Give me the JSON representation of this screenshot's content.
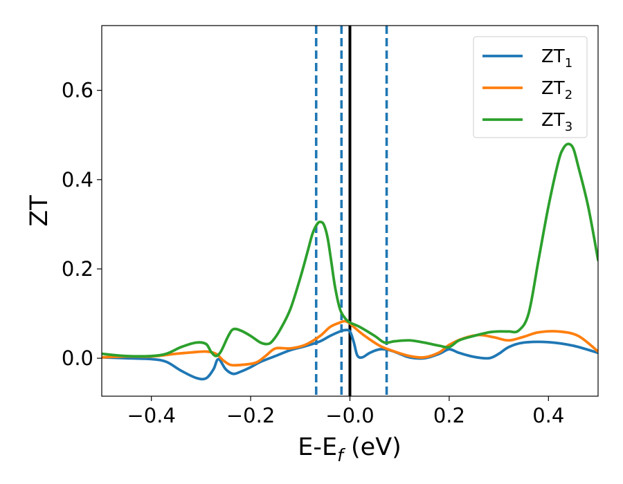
{
  "chart_data": {
    "type": "line",
    "xlabel": {
      "main": "E-E",
      "sub": "f",
      "unit": " (eV)"
    },
    "ylabel": "ZT",
    "xlim": [
      -0.5,
      0.5
    ],
    "ylim": [
      -0.085,
      0.745
    ],
    "xticks": [
      -0.4,
      -0.2,
      0.0,
      0.2,
      0.4
    ],
    "xtick_labels": [
      "−0.4",
      "−0.2",
      "−0.0",
      "0.2",
      "0.4"
    ],
    "yticks": [
      0.0,
      0.2,
      0.4,
      0.6
    ],
    "ytick_labels": [
      "0.0",
      "0.2",
      "0.4",
      "0.6"
    ],
    "grid": false,
    "legend_position": "top-right",
    "vertical_lines": [
      {
        "x": -0.068,
        "style": "dashed",
        "color": "#1f77b4"
      },
      {
        "x": -0.017,
        "style": "dashed",
        "color": "#1f77b4"
      },
      {
        "x": 0.0,
        "style": "solid",
        "color": "#000000"
      },
      {
        "x": 0.074,
        "style": "dashed",
        "color": "#1f77b4"
      }
    ],
    "series": [
      {
        "name": "ZT",
        "subscript": "1",
        "color": "#1f77b4",
        "x": [
          -0.5,
          -0.45,
          -0.4,
          -0.37,
          -0.34,
          -0.31,
          -0.29,
          -0.275,
          -0.265,
          -0.25,
          -0.235,
          -0.22,
          -0.2,
          -0.18,
          -0.15,
          -0.12,
          -0.09,
          -0.06,
          -0.04,
          -0.02,
          -0.01,
          0.0,
          0.008,
          0.015,
          0.025,
          0.04,
          0.06,
          0.08,
          0.1,
          0.12,
          0.15,
          0.18,
          0.2,
          0.22,
          0.25,
          0.28,
          0.3,
          0.32,
          0.35,
          0.4,
          0.45,
          0.5
        ],
        "y": [
          0.002,
          0.0,
          -0.002,
          -0.008,
          -0.028,
          -0.044,
          -0.045,
          -0.025,
          -0.002,
          -0.025,
          -0.035,
          -0.03,
          -0.02,
          -0.008,
          0.005,
          0.018,
          0.027,
          0.038,
          0.05,
          0.06,
          0.063,
          0.06,
          0.035,
          0.006,
          0.002,
          0.012,
          0.02,
          0.018,
          0.01,
          0.002,
          0.0,
          0.01,
          0.02,
          0.012,
          0.003,
          0.0,
          0.01,
          0.025,
          0.035,
          0.036,
          0.028,
          0.012
        ]
      },
      {
        "name": "ZT",
        "subscript": "2",
        "color": "#ff7f0e",
        "x": [
          -0.5,
          -0.45,
          -0.4,
          -0.35,
          -0.32,
          -0.29,
          -0.27,
          -0.255,
          -0.24,
          -0.22,
          -0.19,
          -0.17,
          -0.15,
          -0.12,
          -0.09,
          -0.06,
          -0.04,
          -0.02,
          -0.01,
          0.0,
          0.01,
          0.03,
          0.06,
          0.09,
          0.12,
          0.15,
          0.18,
          0.2,
          0.23,
          0.26,
          0.29,
          0.32,
          0.35,
          0.38,
          0.42,
          0.46,
          0.5
        ],
        "y": [
          0.002,
          0.004,
          0.004,
          0.01,
          0.013,
          0.015,
          0.01,
          -0.005,
          -0.015,
          -0.015,
          -0.01,
          0.005,
          0.022,
          0.022,
          0.03,
          0.05,
          0.07,
          0.08,
          0.083,
          0.078,
          0.068,
          0.05,
          0.028,
          0.015,
          0.005,
          0.002,
          0.013,
          0.03,
          0.045,
          0.052,
          0.047,
          0.04,
          0.048,
          0.058,
          0.06,
          0.05,
          0.015
        ]
      },
      {
        "name": "ZT",
        "subscript": "3",
        "color": "#2ca02c",
        "x": [
          -0.5,
          -0.45,
          -0.4,
          -0.37,
          -0.34,
          -0.31,
          -0.29,
          -0.28,
          -0.27,
          -0.26,
          -0.245,
          -0.235,
          -0.22,
          -0.2,
          -0.18,
          -0.165,
          -0.155,
          -0.14,
          -0.12,
          -0.1,
          -0.085,
          -0.075,
          -0.065,
          -0.058,
          -0.052,
          -0.045,
          -0.038,
          -0.03,
          -0.02,
          -0.01,
          0.0,
          0.02,
          0.05,
          0.07,
          0.09,
          0.12,
          0.15,
          0.18,
          0.2,
          0.22,
          0.25,
          0.28,
          0.3,
          0.32,
          0.34,
          0.36,
          0.38,
          0.4,
          0.42,
          0.43,
          0.44,
          0.45,
          0.46,
          0.48,
          0.5
        ],
        "y": [
          0.01,
          0.005,
          0.005,
          0.01,
          0.025,
          0.035,
          0.032,
          0.015,
          0.005,
          0.015,
          0.05,
          0.065,
          0.062,
          0.05,
          0.035,
          0.032,
          0.04,
          0.065,
          0.11,
          0.18,
          0.24,
          0.28,
          0.302,
          0.305,
          0.298,
          0.27,
          0.22,
          0.16,
          0.11,
          0.09,
          0.08,
          0.07,
          0.05,
          0.035,
          0.038,
          0.04,
          0.035,
          0.028,
          0.025,
          0.04,
          0.05,
          0.058,
          0.06,
          0.06,
          0.062,
          0.1,
          0.22,
          0.34,
          0.44,
          0.47,
          0.48,
          0.47,
          0.43,
          0.34,
          0.22
        ]
      }
    ]
  }
}
